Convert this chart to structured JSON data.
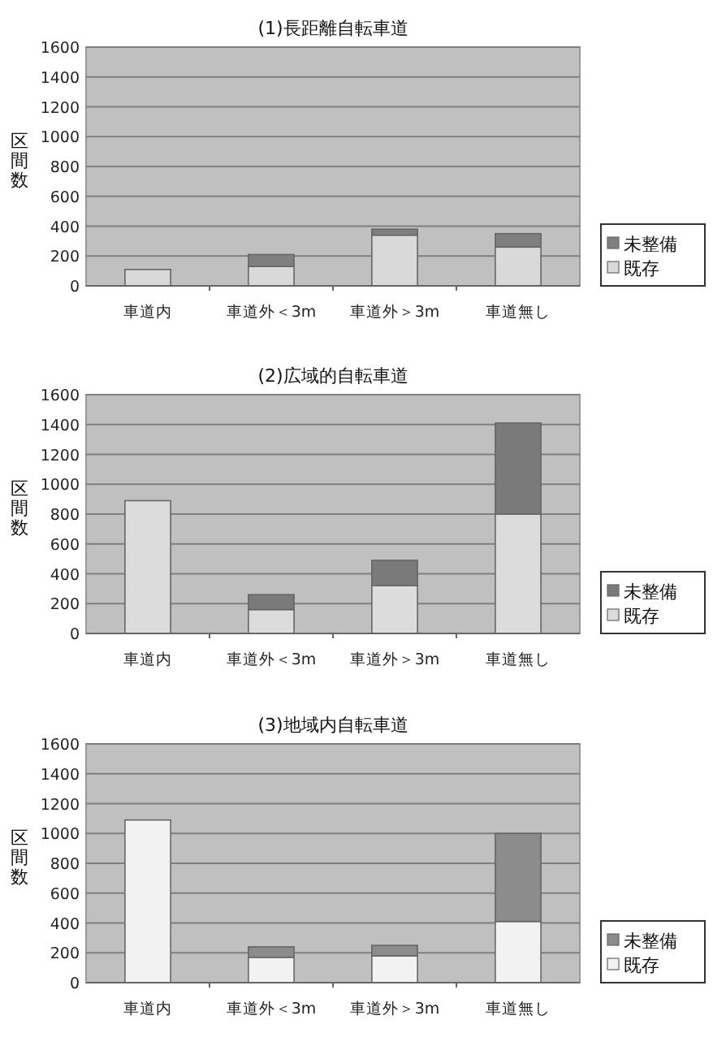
{
  "chart_data": [
    {
      "type": "bar",
      "title": "(1)長距離自転車道",
      "ylabel": "区間数",
      "categories": [
        "車道内",
        "車道外＜3m",
        "車道外＞3m",
        "車道無し"
      ],
      "stacked": true,
      "ylim": [
        0,
        1600
      ],
      "yticks": [
        0,
        200,
        400,
        600,
        800,
        1000,
        1200,
        1400,
        1600
      ],
      "grid": "y",
      "legend": "right",
      "series": [
        {
          "name": "既存",
          "color": "#d9d9d9",
          "values": [
            110,
            130,
            340,
            260
          ]
        },
        {
          "name": "未整備",
          "color": "#7f7f7f",
          "values": [
            null,
            80,
            40,
            90
          ]
        }
      ]
    },
    {
      "type": "bar",
      "title": "(2)広域的自転車道",
      "ylabel": "区間数",
      "categories": [
        "車道内",
        "車道外＜3m",
        "車道外＞3m",
        "車道無し"
      ],
      "stacked": true,
      "ylim": [
        0,
        1600
      ],
      "yticks": [
        0,
        200,
        400,
        600,
        800,
        1000,
        1200,
        1400,
        1600
      ],
      "grid": "y",
      "legend": "right",
      "series": [
        {
          "name": "既存",
          "color": "#dcdcdc",
          "values": [
            890,
            160,
            320,
            800
          ]
        },
        {
          "name": "未整備",
          "color": "#7a7a7a",
          "values": [
            null,
            100,
            170,
            610
          ]
        }
      ]
    },
    {
      "type": "bar",
      "title": "(3)地域内自転車道",
      "ylabel": "区間数",
      "categories": [
        "車道内",
        "車道外＜3m",
        "車道外＞3m",
        "車道無し"
      ],
      "stacked": true,
      "ylim": [
        0,
        1600
      ],
      "yticks": [
        0,
        200,
        400,
        600,
        800,
        1000,
        1200,
        1400,
        1600
      ],
      "grid": "y",
      "legend": "right",
      "series": [
        {
          "name": "既存",
          "color": "#f2f2f2",
          "values": [
            1090,
            170,
            180,
            410
          ]
        },
        {
          "name": "未整備",
          "color": "#8c8c8c",
          "values": [
            null,
            70,
            70,
            590
          ]
        }
      ]
    }
  ]
}
